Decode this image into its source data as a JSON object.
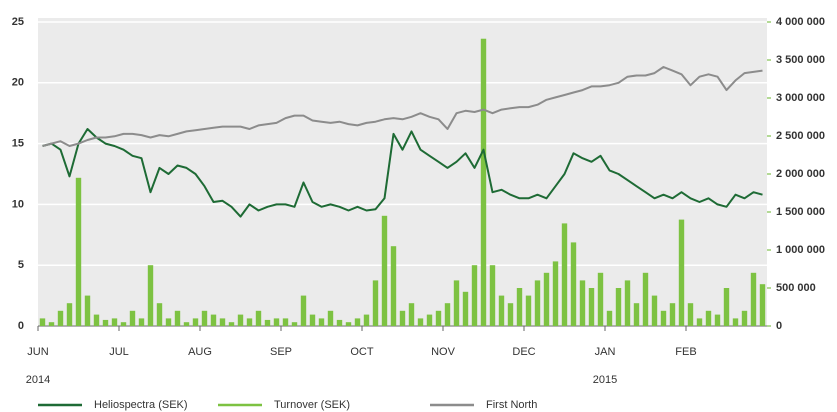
{
  "chart_data": {
    "type": "line_bar_combo",
    "categories": [
      "JUN",
      null,
      null,
      null,
      null,
      null,
      null,
      null,
      null,
      "JUL",
      null,
      null,
      null,
      null,
      null,
      null,
      null,
      null,
      "AUG",
      null,
      null,
      null,
      null,
      null,
      null,
      null,
      null,
      "SEP",
      null,
      null,
      null,
      null,
      null,
      null,
      null,
      null,
      "OCT",
      null,
      null,
      null,
      null,
      null,
      null,
      null,
      null,
      "NOV",
      null,
      null,
      null,
      null,
      null,
      null,
      null,
      null,
      "DEC",
      null,
      null,
      null,
      null,
      null,
      null,
      null,
      null,
      "JAN",
      null,
      null,
      null,
      null,
      null,
      null,
      null,
      null,
      "FEB",
      null,
      null,
      null,
      null,
      null,
      null,
      null,
      null
    ],
    "years": [
      "2014",
      "2015"
    ],
    "series": [
      {
        "name": "Heliospectra (SEK)",
        "color": "#1e6b35",
        "kind": "line",
        "axis": "y",
        "values": [
          14.8,
          15.0,
          14.5,
          12.3,
          15.0,
          16.2,
          15.5,
          15.0,
          14.8,
          14.5,
          14.0,
          13.8,
          11.0,
          13.0,
          12.5,
          13.2,
          13.0,
          12.5,
          11.5,
          10.2,
          10.3,
          9.8,
          9.0,
          10.0,
          9.5,
          9.8,
          10.0,
          10.0,
          9.8,
          11.8,
          10.2,
          9.8,
          10.0,
          9.8,
          9.5,
          9.8,
          9.5,
          9.6,
          10.5,
          15.8,
          14.5,
          16.0,
          14.5,
          14.0,
          13.5,
          13.0,
          13.5,
          14.2,
          13.0,
          14.5,
          11.0,
          11.2,
          10.8,
          10.5,
          10.5,
          10.8,
          10.5,
          11.5,
          12.5,
          14.2,
          13.8,
          13.5,
          14.0,
          12.8,
          12.5,
          12.0,
          11.5,
          11.0,
          10.5,
          10.8,
          10.5,
          11.0,
          10.5,
          10.2,
          10.5,
          10.0,
          9.8,
          10.8,
          10.5,
          11.0,
          10.8
        ]
      },
      {
        "name": "Turnover (SEK)",
        "color": "#7dc242",
        "kind": "bar",
        "axis": "y2",
        "values": [
          100000,
          50000,
          200000,
          300000,
          1950000,
          400000,
          150000,
          80000,
          100000,
          50000,
          200000,
          100000,
          800000,
          300000,
          100000,
          200000,
          50000,
          100000,
          200000,
          150000,
          100000,
          50000,
          150000,
          100000,
          200000,
          80000,
          100000,
          100000,
          50000,
          400000,
          150000,
          100000,
          200000,
          80000,
          50000,
          100000,
          150000,
          600000,
          1450000,
          1050000,
          200000,
          300000,
          100000,
          150000,
          200000,
          300000,
          600000,
          450000,
          800000,
          3780000,
          800000,
          400000,
          300000,
          500000,
          400000,
          600000,
          700000,
          850000,
          1350000,
          1100000,
          600000,
          500000,
          700000,
          200000,
          500000,
          600000,
          300000,
          700000,
          400000,
          200000,
          300000,
          1400000,
          300000,
          100000,
          200000,
          150000,
          500000,
          100000,
          200000,
          700000,
          550000
        ]
      },
      {
        "name": "First North",
        "color": "#8c8c8c",
        "kind": "line",
        "axis": "y",
        "values": [
          14.8,
          15.0,
          15.2,
          14.8,
          15.0,
          15.3,
          15.5,
          15.5,
          15.6,
          15.8,
          15.8,
          15.7,
          15.5,
          15.7,
          15.6,
          15.8,
          16.0,
          16.1,
          16.2,
          16.3,
          16.4,
          16.4,
          16.4,
          16.2,
          16.5,
          16.6,
          16.7,
          17.1,
          17.3,
          17.3,
          16.9,
          16.8,
          16.7,
          16.8,
          16.6,
          16.5,
          16.7,
          16.8,
          17.0,
          17.1,
          17.0,
          17.2,
          17.5,
          17.2,
          17.0,
          16.2,
          17.5,
          17.7,
          17.6,
          17.8,
          17.5,
          17.8,
          17.9,
          18.0,
          18.0,
          18.2,
          18.6,
          18.8,
          19.0,
          19.2,
          19.4,
          19.7,
          19.7,
          19.8,
          20.0,
          20.5,
          20.6,
          20.6,
          20.8,
          21.3,
          21.0,
          20.7,
          19.8,
          20.5,
          20.7,
          20.5,
          19.4,
          20.2,
          20.8,
          20.9,
          21.0
        ]
      }
    ],
    "ylim": [
      0,
      25
    ],
    "yticks": [
      0,
      5,
      10,
      15,
      20,
      25
    ],
    "y2lim": [
      0,
      4000000
    ],
    "y2ticks": [
      {
        "value": 0,
        "label": "0"
      },
      {
        "value": 500000,
        "label": "500 000"
      },
      {
        "value": 1000000,
        "label": "1 000 000"
      },
      {
        "value": 1500000,
        "label": "1 500 000"
      },
      {
        "value": 2000000,
        "label": "2 000 000"
      },
      {
        "value": 2500000,
        "label": "2 500 000"
      },
      {
        "value": 3000000,
        "label": "3 000 000"
      },
      {
        "value": 3500000,
        "label": "3 500 000"
      },
      {
        "value": 4000000,
        "label": "4 000 000"
      }
    ],
    "y2color": "#6ab52e",
    "background": "#ebebeb",
    "grid": true,
    "legend": "bottom"
  }
}
